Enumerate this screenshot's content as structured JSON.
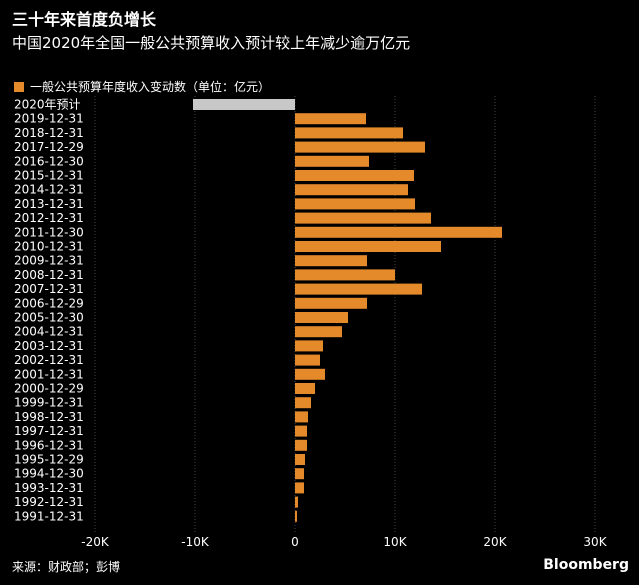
{
  "title": "三十年来首度负增长",
  "subtitle": "中国2020年全国一般公共预算收入预计较上年减少逾万亿元",
  "legend_label": "一般公共预算年度收入变动数（单位：亿元）",
  "source": "来源：财政部；彭博",
  "brand": "Bloomberg",
  "colors": {
    "bar": "#e48a2a",
    "forecast_bar": "#c8c8c8",
    "background": "#000000",
    "grid": "#444444"
  },
  "chart_data": {
    "type": "bar",
    "orientation": "horizontal",
    "categories": [
      "2020年预计",
      "2019-12-31",
      "2018-12-31",
      "2017-12-29",
      "2016-12-30",
      "2015-12-31",
      "2014-12-31",
      "2013-12-31",
      "2012-12-31",
      "2011-12-30",
      "2010-12-31",
      "2009-12-31",
      "2008-12-31",
      "2007-12-31",
      "2006-12-29",
      "2005-12-30",
      "2004-12-31",
      "2003-12-31",
      "2002-12-31",
      "2001-12-31",
      "2000-12-29",
      "1999-12-31",
      "1998-12-31",
      "1997-12-31",
      "1996-12-31",
      "1995-12-29",
      "1994-12-30",
      "1993-12-31",
      "1992-12-31",
      "1991-12-31"
    ],
    "values": [
      -10200,
      7100,
      10800,
      13000,
      7400,
      11900,
      11300,
      12000,
      13600,
      20700,
      14600,
      7200,
      10000,
      12700,
      7200,
      5300,
      4700,
      2800,
      2500,
      3000,
      2000,
      1600,
      1300,
      1200,
      1200,
      1000,
      900,
      900,
      300,
      200
    ],
    "xlim": [
      -20000,
      30000
    ],
    "xticks": [
      -20000,
      -10000,
      0,
      10000,
      20000,
      30000
    ],
    "xtick_labels": [
      "-20K",
      "-10K",
      "0",
      "10K",
      "20K",
      "30K"
    ],
    "grid": true,
    "legend_position": "top-left"
  }
}
